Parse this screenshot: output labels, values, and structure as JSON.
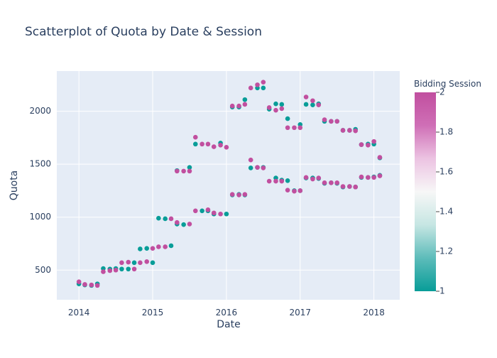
{
  "chart_data": {
    "type": "scatter",
    "title": "Scatterplot of Quota by Date & Session",
    "xlabel": "Date",
    "ylabel": "Quota",
    "xlim": [
      2013.7,
      2018.35
    ],
    "ylim": [
      220,
      2380
    ],
    "x_ticks": [
      2014,
      2015,
      2016,
      2017,
      2018
    ],
    "x_tick_labels": [
      "2014",
      "2015",
      "2016",
      "2017",
      "2018"
    ],
    "y_ticks": [
      500,
      1000,
      1500,
      2000
    ],
    "y_tick_labels": [
      "500",
      "1000",
      "1500",
      "2000"
    ],
    "grid": true,
    "colorbar": {
      "title": "Bidding Session",
      "min": 1,
      "max": 2,
      "ticks": [
        1,
        1.2,
        1.4,
        1.6,
        1.8,
        2
      ],
      "tick_labels": [
        "1",
        "1.2",
        "1.4",
        "1.6",
        "1.8",
        "2"
      ],
      "colors": [
        "#089d98",
        "#5dbcba",
        "#c6e6e3",
        "#f7f7f7",
        "#ecc3e2",
        "#cf6fb6",
        "#c14f9f"
      ]
    },
    "points": [
      {
        "x": 2014.0,
        "y": 370,
        "s": 1
      },
      {
        "x": 2014.0,
        "y": 390,
        "s": 2
      },
      {
        "x": 2014.08,
        "y": 360,
        "s": 1
      },
      {
        "x": 2014.08,
        "y": 365,
        "s": 2
      },
      {
        "x": 2014.17,
        "y": 355,
        "s": 1
      },
      {
        "x": 2014.17,
        "y": 360,
        "s": 2
      },
      {
        "x": 2014.25,
        "y": 370,
        "s": 1
      },
      {
        "x": 2014.25,
        "y": 355,
        "s": 2
      },
      {
        "x": 2014.33,
        "y": 515,
        "s": 1
      },
      {
        "x": 2014.33,
        "y": 485,
        "s": 2
      },
      {
        "x": 2014.42,
        "y": 510,
        "s": 1
      },
      {
        "x": 2014.42,
        "y": 495,
        "s": 2
      },
      {
        "x": 2014.5,
        "y": 515,
        "s": 1
      },
      {
        "x": 2014.5,
        "y": 500,
        "s": 2
      },
      {
        "x": 2014.58,
        "y": 510,
        "s": 1
      },
      {
        "x": 2014.58,
        "y": 570,
        "s": 2
      },
      {
        "x": 2014.67,
        "y": 510,
        "s": 1
      },
      {
        "x": 2014.67,
        "y": 575,
        "s": 2
      },
      {
        "x": 2014.75,
        "y": 570,
        "s": 1
      },
      {
        "x": 2014.75,
        "y": 510,
        "s": 2
      },
      {
        "x": 2014.83,
        "y": 700,
        "s": 1
      },
      {
        "x": 2014.83,
        "y": 570,
        "s": 2
      },
      {
        "x": 2014.92,
        "y": 705,
        "s": 1
      },
      {
        "x": 2014.92,
        "y": 580,
        "s": 2
      },
      {
        "x": 2015.0,
        "y": 570,
        "s": 1
      },
      {
        "x": 2015.0,
        "y": 705,
        "s": 2
      },
      {
        "x": 2015.08,
        "y": 990,
        "s": 1
      },
      {
        "x": 2015.08,
        "y": 720,
        "s": 2
      },
      {
        "x": 2015.17,
        "y": 985,
        "s": 1
      },
      {
        "x": 2015.17,
        "y": 720,
        "s": 2
      },
      {
        "x": 2015.25,
        "y": 730,
        "s": 1
      },
      {
        "x": 2015.25,
        "y": 985,
        "s": 2
      },
      {
        "x": 2015.33,
        "y": 1440,
        "s": 1
      },
      {
        "x": 2015.33,
        "y": 935,
        "s": 1
      },
      {
        "x": 2015.33,
        "y": 950,
        "s": 2
      },
      {
        "x": 2015.33,
        "y": 1435,
        "s": 2
      },
      {
        "x": 2015.42,
        "y": 930,
        "s": 1
      },
      {
        "x": 2015.42,
        "y": 1435,
        "s": 2
      },
      {
        "x": 2015.5,
        "y": 1470,
        "s": 1
      },
      {
        "x": 2015.5,
        "y": 935,
        "s": 2
      },
      {
        "x": 2015.5,
        "y": 1435,
        "s": 2
      },
      {
        "x": 2015.58,
        "y": 1690,
        "s": 1
      },
      {
        "x": 2015.58,
        "y": 1060,
        "s": 2
      },
      {
        "x": 2015.58,
        "y": 1755,
        "s": 2
      },
      {
        "x": 2015.67,
        "y": 1060,
        "s": 1
      },
      {
        "x": 2015.67,
        "y": 1690,
        "s": 2
      },
      {
        "x": 2015.75,
        "y": 1060,
        "s": 1
      },
      {
        "x": 2015.75,
        "y": 1070,
        "s": 2
      },
      {
        "x": 2015.75,
        "y": 1690,
        "s": 2
      },
      {
        "x": 2015.83,
        "y": 1030,
        "s": 1
      },
      {
        "x": 2015.83,
        "y": 1040,
        "s": 2
      },
      {
        "x": 2015.83,
        "y": 1665,
        "s": 2
      },
      {
        "x": 2015.92,
        "y": 1700,
        "s": 1
      },
      {
        "x": 2015.92,
        "y": 1030,
        "s": 2
      },
      {
        "x": 2015.92,
        "y": 1680,
        "s": 2
      },
      {
        "x": 2016.0,
        "y": 1030,
        "s": 1
      },
      {
        "x": 2016.0,
        "y": 1660,
        "s": 2
      },
      {
        "x": 2016.08,
        "y": 1210,
        "s": 1
      },
      {
        "x": 2016.08,
        "y": 2040,
        "s": 1
      },
      {
        "x": 2016.08,
        "y": 1215,
        "s": 2
      },
      {
        "x": 2016.08,
        "y": 2050,
        "s": 2
      },
      {
        "x": 2016.17,
        "y": 1215,
        "s": 1
      },
      {
        "x": 2016.17,
        "y": 2040,
        "s": 1
      },
      {
        "x": 2016.17,
        "y": 1210,
        "s": 2
      },
      {
        "x": 2016.17,
        "y": 2050,
        "s": 2
      },
      {
        "x": 2016.25,
        "y": 2110,
        "s": 1
      },
      {
        "x": 2016.25,
        "y": 1210,
        "s": 1
      },
      {
        "x": 2016.25,
        "y": 1215,
        "s": 2
      },
      {
        "x": 2016.25,
        "y": 2065,
        "s": 2
      },
      {
        "x": 2016.33,
        "y": 1465,
        "s": 1
      },
      {
        "x": 2016.33,
        "y": 1540,
        "s": 2
      },
      {
        "x": 2016.33,
        "y": 2220,
        "s": 2
      },
      {
        "x": 2016.42,
        "y": 2220,
        "s": 1
      },
      {
        "x": 2016.42,
        "y": 1470,
        "s": 1
      },
      {
        "x": 2016.42,
        "y": 2250,
        "s": 2
      },
      {
        "x": 2016.42,
        "y": 1470,
        "s": 2
      },
      {
        "x": 2016.5,
        "y": 2220,
        "s": 1
      },
      {
        "x": 2016.5,
        "y": 1470,
        "s": 1
      },
      {
        "x": 2016.5,
        "y": 2275,
        "s": 2
      },
      {
        "x": 2016.5,
        "y": 1465,
        "s": 2
      },
      {
        "x": 2016.58,
        "y": 2020,
        "s": 1
      },
      {
        "x": 2016.58,
        "y": 2035,
        "s": 2
      },
      {
        "x": 2016.58,
        "y": 1340,
        "s": 2
      },
      {
        "x": 2016.67,
        "y": 2070,
        "s": 1
      },
      {
        "x": 2016.67,
        "y": 1370,
        "s": 1
      },
      {
        "x": 2016.67,
        "y": 2010,
        "s": 2
      },
      {
        "x": 2016.67,
        "y": 1340,
        "s": 2
      },
      {
        "x": 2016.75,
        "y": 2065,
        "s": 1
      },
      {
        "x": 2016.75,
        "y": 1350,
        "s": 1
      },
      {
        "x": 2016.75,
        "y": 2025,
        "s": 2
      },
      {
        "x": 2016.75,
        "y": 1340,
        "s": 2
      },
      {
        "x": 2016.83,
        "y": 1930,
        "s": 1
      },
      {
        "x": 2016.83,
        "y": 1345,
        "s": 1
      },
      {
        "x": 2016.83,
        "y": 1845,
        "s": 2
      },
      {
        "x": 2016.83,
        "y": 1255,
        "s": 2
      },
      {
        "x": 2016.92,
        "y": 1250,
        "s": 1
      },
      {
        "x": 2016.92,
        "y": 1845,
        "s": 2
      },
      {
        "x": 2016.92,
        "y": 1245,
        "s": 2
      },
      {
        "x": 2017.0,
        "y": 1875,
        "s": 1
      },
      {
        "x": 2017.0,
        "y": 1250,
        "s": 1
      },
      {
        "x": 2017.0,
        "y": 1845,
        "s": 2
      },
      {
        "x": 2017.0,
        "y": 1250,
        "s": 2
      },
      {
        "x": 2017.08,
        "y": 2065,
        "s": 1
      },
      {
        "x": 2017.08,
        "y": 1370,
        "s": 1
      },
      {
        "x": 2017.08,
        "y": 2135,
        "s": 2
      },
      {
        "x": 2017.08,
        "y": 1375,
        "s": 2
      },
      {
        "x": 2017.17,
        "y": 2060,
        "s": 1
      },
      {
        "x": 2017.17,
        "y": 1370,
        "s": 1
      },
      {
        "x": 2017.17,
        "y": 2100,
        "s": 2
      },
      {
        "x": 2017.17,
        "y": 1360,
        "s": 2
      },
      {
        "x": 2017.25,
        "y": 2070,
        "s": 1
      },
      {
        "x": 2017.25,
        "y": 1365,
        "s": 1
      },
      {
        "x": 2017.25,
        "y": 2060,
        "s": 2
      },
      {
        "x": 2017.25,
        "y": 1370,
        "s": 2
      },
      {
        "x": 2017.33,
        "y": 1905,
        "s": 1
      },
      {
        "x": 2017.33,
        "y": 1320,
        "s": 1
      },
      {
        "x": 2017.33,
        "y": 1920,
        "s": 2
      },
      {
        "x": 2017.33,
        "y": 1325,
        "s": 2
      },
      {
        "x": 2017.42,
        "y": 1905,
        "s": 1
      },
      {
        "x": 2017.42,
        "y": 1325,
        "s": 1
      },
      {
        "x": 2017.42,
        "y": 1905,
        "s": 2
      },
      {
        "x": 2017.42,
        "y": 1325,
        "s": 2
      },
      {
        "x": 2017.5,
        "y": 1905,
        "s": 1
      },
      {
        "x": 2017.5,
        "y": 1320,
        "s": 1
      },
      {
        "x": 2017.5,
        "y": 1905,
        "s": 2
      },
      {
        "x": 2017.5,
        "y": 1325,
        "s": 2
      },
      {
        "x": 2017.58,
        "y": 1820,
        "s": 1
      },
      {
        "x": 2017.58,
        "y": 1285,
        "s": 1
      },
      {
        "x": 2017.58,
        "y": 1820,
        "s": 2
      },
      {
        "x": 2017.58,
        "y": 1290,
        "s": 2
      },
      {
        "x": 2017.67,
        "y": 1820,
        "s": 1
      },
      {
        "x": 2017.67,
        "y": 1290,
        "s": 1
      },
      {
        "x": 2017.67,
        "y": 1820,
        "s": 2
      },
      {
        "x": 2017.67,
        "y": 1290,
        "s": 2
      },
      {
        "x": 2017.75,
        "y": 1830,
        "s": 1
      },
      {
        "x": 2017.75,
        "y": 1285,
        "s": 1
      },
      {
        "x": 2017.75,
        "y": 1815,
        "s": 2
      },
      {
        "x": 2017.75,
        "y": 1285,
        "s": 2
      },
      {
        "x": 2017.83,
        "y": 1685,
        "s": 1
      },
      {
        "x": 2017.83,
        "y": 1375,
        "s": 1
      },
      {
        "x": 2017.83,
        "y": 1685,
        "s": 2
      },
      {
        "x": 2017.83,
        "y": 1380,
        "s": 2
      },
      {
        "x": 2017.92,
        "y": 1690,
        "s": 1
      },
      {
        "x": 2017.92,
        "y": 1375,
        "s": 1
      },
      {
        "x": 2017.92,
        "y": 1680,
        "s": 2
      },
      {
        "x": 2017.92,
        "y": 1375,
        "s": 2
      },
      {
        "x": 2018.0,
        "y": 1690,
        "s": 1
      },
      {
        "x": 2018.0,
        "y": 1380,
        "s": 1
      },
      {
        "x": 2018.0,
        "y": 1715,
        "s": 2
      },
      {
        "x": 2018.0,
        "y": 1375,
        "s": 2
      },
      {
        "x": 2018.08,
        "y": 1560,
        "s": 1
      },
      {
        "x": 2018.08,
        "y": 1395,
        "s": 1
      },
      {
        "x": 2018.08,
        "y": 1565,
        "s": 2
      },
      {
        "x": 2018.08,
        "y": 1390,
        "s": 2
      }
    ]
  }
}
